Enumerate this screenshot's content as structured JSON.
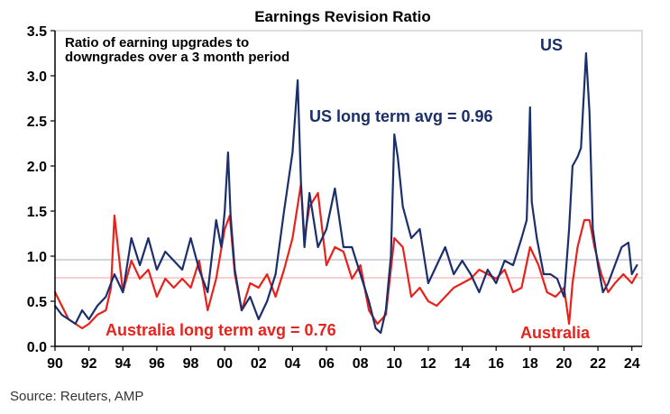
{
  "chart_data": {
    "type": "line",
    "title": "Earnings Revision Ratio",
    "annotations": {
      "note_line1": "Ratio of earning upgrades to",
      "note_line2": "downgrades over a 3 month period",
      "us_label": "US",
      "us_avg_label": "US long term avg = 0.96",
      "au_label": "Australia",
      "au_avg_label": "Australia long term avg = 0.76"
    },
    "source": "Source: Reuters, AMP",
    "xlim": [
      1990,
      2024.6
    ],
    "ylim": [
      0,
      3.5
    ],
    "x_ticks": [
      1990,
      1992,
      1994,
      1996,
      1998,
      2000,
      2002,
      2004,
      2006,
      2008,
      2010,
      2012,
      2014,
      2016,
      2018,
      2020,
      2022,
      2024
    ],
    "x_tick_labels": [
      "90",
      "92",
      "94",
      "96",
      "98",
      "00",
      "02",
      "04",
      "06",
      "08",
      "10",
      "12",
      "14",
      "16",
      "18",
      "20",
      "22",
      "24"
    ],
    "y_ticks": [
      0,
      0.5,
      1.0,
      1.5,
      2.0,
      2.5,
      3.0,
      3.5
    ],
    "y_tick_labels": [
      "0.0",
      "0.5",
      "1.0",
      "1.5",
      "2.0",
      "2.5",
      "3.0",
      "3.5"
    ],
    "reference_lines": [
      {
        "label": "US long term avg = 0.96",
        "value": 0.96,
        "color": "#a0a8b8"
      },
      {
        "label": "Australia long term avg = 0.76",
        "value": 0.76,
        "color": "#f0a0a0"
      }
    ],
    "series": [
      {
        "name": "US",
        "color": "#1a2f6b",
        "x": [
          1990.0,
          1990.4,
          1990.8,
          1991.2,
          1991.6,
          1992.0,
          1992.5,
          1993.0,
          1993.5,
          1994.0,
          1994.5,
          1995.0,
          1995.5,
          1996.0,
          1996.5,
          1997.0,
          1997.5,
          1998.0,
          1998.5,
          1999.0,
          1999.5,
          1999.8,
          2000.0,
          2000.2,
          2000.35,
          2000.6,
          2001.0,
          2001.5,
          2002.0,
          2002.5,
          2003.0,
          2003.5,
          2004.0,
          2004.3,
          2004.5,
          2004.7,
          2005.0,
          2005.5,
          2006.0,
          2006.5,
          2007.0,
          2007.5,
          2008.0,
          2008.5,
          2008.9,
          2009.2,
          2009.5,
          2009.8,
          2010.0,
          2010.2,
          2010.5,
          2011.0,
          2011.5,
          2012.0,
          2012.5,
          2013.0,
          2013.5,
          2014.0,
          2014.5,
          2015.0,
          2015.5,
          2016.0,
          2016.5,
          2017.0,
          2017.5,
          2017.8,
          2018.0,
          2018.1,
          2018.4,
          2018.8,
          2019.2,
          2019.6,
          2020.0,
          2020.3,
          2020.5,
          2020.8,
          2021.0,
          2021.3,
          2021.5,
          2021.7,
          2022.0,
          2022.3,
          2022.6,
          2023.0,
          2023.4,
          2023.8,
          2024.0,
          2024.3
        ],
        "y": [
          0.45,
          0.35,
          0.3,
          0.25,
          0.4,
          0.3,
          0.45,
          0.55,
          0.8,
          0.6,
          1.2,
          0.9,
          1.2,
          0.85,
          1.05,
          0.95,
          0.85,
          1.2,
          0.85,
          0.6,
          1.4,
          1.1,
          1.5,
          2.15,
          1.45,
          0.85,
          0.4,
          0.55,
          0.3,
          0.5,
          0.8,
          1.5,
          2.15,
          2.95,
          1.8,
          1.1,
          1.7,
          1.1,
          1.3,
          1.75,
          1.1,
          1.1,
          0.8,
          0.5,
          0.2,
          0.15,
          0.4,
          1.0,
          2.35,
          2.1,
          1.55,
          1.2,
          1.3,
          0.7,
          0.9,
          1.1,
          0.8,
          0.95,
          0.8,
          0.6,
          0.85,
          0.7,
          0.95,
          0.9,
          1.2,
          1.4,
          2.65,
          1.6,
          1.2,
          0.8,
          0.8,
          0.75,
          0.55,
          1.3,
          2.0,
          2.1,
          2.2,
          3.25,
          2.6,
          1.3,
          0.9,
          0.6,
          0.7,
          0.9,
          1.1,
          1.15,
          0.8,
          0.9
        ]
      },
      {
        "name": "Australia",
        "color": "#e8221b",
        "x": [
          1990.0,
          1990.4,
          1990.8,
          1991.2,
          1991.6,
          1992.0,
          1992.5,
          1993.0,
          1993.3,
          1993.5,
          1994.0,
          1994.5,
          1995.0,
          1995.5,
          1996.0,
          1996.5,
          1997.0,
          1997.5,
          1998.0,
          1998.5,
          1999.0,
          1999.5,
          2000.0,
          2000.3,
          2000.6,
          2001.0,
          2001.5,
          2002.0,
          2002.5,
          2003.0,
          2003.5,
          2004.0,
          2004.5,
          2004.7,
          2005.0,
          2005.5,
          2006.0,
          2006.5,
          2007.0,
          2007.5,
          2008.0,
          2008.5,
          2009.0,
          2009.5,
          2010.0,
          2010.5,
          2011.0,
          2011.5,
          2012.0,
          2012.5,
          2013.0,
          2013.5,
          2014.0,
          2014.5,
          2015.0,
          2015.5,
          2016.0,
          2016.5,
          2017.0,
          2017.5,
          2018.0,
          2018.5,
          2019.0,
          2019.5,
          2020.0,
          2020.3,
          2020.5,
          2020.8,
          2021.2,
          2021.5,
          2021.8,
          2022.2,
          2022.6,
          2023.0,
          2023.5,
          2024.0,
          2024.3
        ],
        "y": [
          0.6,
          0.45,
          0.3,
          0.25,
          0.2,
          0.25,
          0.35,
          0.4,
          0.65,
          1.45,
          0.6,
          0.95,
          0.75,
          0.85,
          0.55,
          0.75,
          0.65,
          0.75,
          0.65,
          0.95,
          0.4,
          0.75,
          1.3,
          1.45,
          0.8,
          0.4,
          0.7,
          0.65,
          0.8,
          0.55,
          0.85,
          1.2,
          1.8,
          1.2,
          1.55,
          1.7,
          0.9,
          1.1,
          1.05,
          0.75,
          0.9,
          0.4,
          0.25,
          0.35,
          1.2,
          1.1,
          0.55,
          0.65,
          0.5,
          0.45,
          0.55,
          0.65,
          0.7,
          0.75,
          0.85,
          0.8,
          0.75,
          0.85,
          0.6,
          0.65,
          1.1,
          0.9,
          0.6,
          0.55,
          0.65,
          0.25,
          0.7,
          1.1,
          1.4,
          1.4,
          1.1,
          0.8,
          0.6,
          0.7,
          0.8,
          0.7,
          0.8
        ]
      }
    ]
  }
}
